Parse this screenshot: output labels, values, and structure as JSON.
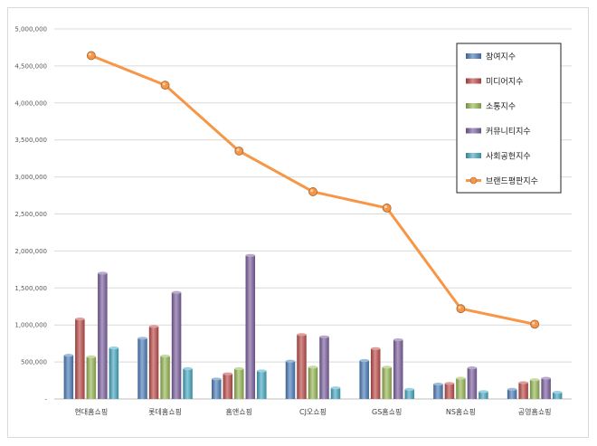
{
  "chart_data": {
    "type": "bar",
    "title": "",
    "xlabel": "",
    "ylabel": "",
    "ylim": [
      0,
      5000000
    ],
    "yticks": [
      "-",
      "500,000",
      "1,000,000",
      "1,500,000",
      "2,000,000",
      "2,500,000",
      "3,000,000",
      "3,500,000",
      "4,000,000",
      "4,500,000",
      "5,000,000"
    ],
    "categories": [
      "현대홈쇼핑",
      "롯데홈쇼핑",
      "홈앤쇼핑",
      "CJ오쇼핑",
      "GS홈쇼핑",
      "NS홈쇼핑",
      "공영홈쇼핑"
    ],
    "series": [
      {
        "name": "참여지수",
        "type": "bar",
        "color": "#4f81bd",
        "values": [
          590000,
          820000,
          270000,
          510000,
          520000,
          200000,
          130000
        ]
      },
      {
        "name": "미디어지수",
        "type": "bar",
        "color": "#c0504d",
        "values": [
          1080000,
          980000,
          340000,
          870000,
          680000,
          210000,
          220000
        ]
      },
      {
        "name": "소통지수",
        "type": "bar",
        "color": "#9bbb59",
        "values": [
          570000,
          580000,
          410000,
          430000,
          430000,
          280000,
          260000
        ]
      },
      {
        "name": "커뮤니티지수",
        "type": "bar",
        "color": "#8064a2",
        "values": [
          1700000,
          1440000,
          1940000,
          840000,
          800000,
          420000,
          280000
        ]
      },
      {
        "name": "사회공헌지수",
        "type": "bar",
        "color": "#4bacc6",
        "values": [
          690000,
          410000,
          380000,
          150000,
          130000,
          100000,
          90000
        ]
      },
      {
        "name": "브랜드평판지수",
        "type": "line",
        "color": "#f79646",
        "values": [
          4640000,
          4240000,
          3350000,
          2800000,
          2580000,
          1220000,
          1010000
        ]
      }
    ],
    "legend_position": "top-right",
    "grid": true
  }
}
